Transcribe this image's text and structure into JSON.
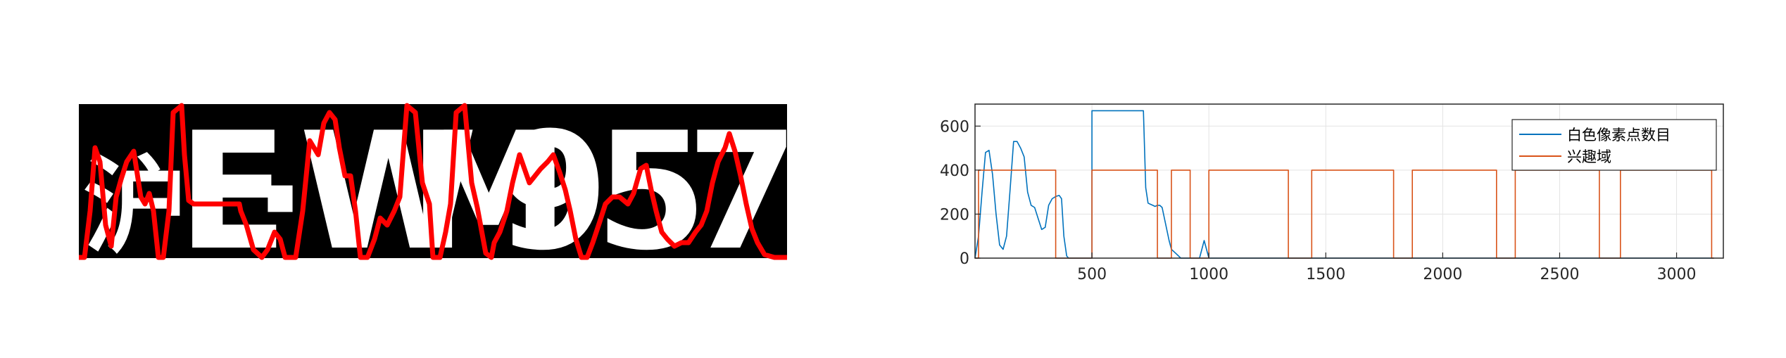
{
  "plate": {
    "characters": [
      "沪",
      "E",
      "·",
      "W",
      "M",
      "9",
      "5",
      "7"
    ],
    "colors": {
      "background": "#000000",
      "text": "#ffffff",
      "overlay": "#ff0000"
    },
    "overlay_profile_note": "red column-projection curve drawn over the binarized plate"
  },
  "chart_data": {
    "type": "line",
    "xlim": [
      0,
      3200
    ],
    "ylim": [
      0,
      700
    ],
    "xticks": [
      500,
      1000,
      1500,
      2000,
      2500,
      3000
    ],
    "yticks": [
      0,
      200,
      400,
      600
    ],
    "grid": true,
    "legend_position": "top-right",
    "series": [
      {
        "name": "白色像素点数目",
        "color": "#0072BD",
        "x": [
          0,
          15,
          30,
          45,
          60,
          75,
          90,
          105,
          120,
          135,
          150,
          165,
          180,
          195,
          210,
          225,
          240,
          255,
          270,
          285,
          300,
          315,
          330,
          345,
          360,
          370,
          380,
          392,
          400,
          402,
          420,
          440,
          460,
          480,
          500,
          500,
          520,
          560,
          600,
          640,
          680,
          720,
          730,
          740,
          750,
          760,
          770,
          780,
          790,
          800,
          830,
          840,
          860,
          880,
          900,
          920,
          940,
          960,
          980,
          1000,
          1020,
          1040,
          1060,
          1070,
          1080,
          1090,
          1100,
          1110,
          1120,
          1130,
          1140,
          1150,
          1160,
          1170,
          1180,
          1190,
          1200,
          1210,
          1220,
          1230,
          1240,
          1250,
          1260,
          1270,
          1280,
          1290,
          1300,
          1310,
          1320,
          1330,
          1335,
          1340,
          1350,
          1360,
          1380,
          1400,
          1420,
          1440,
          1450,
          1460,
          1470,
          1480,
          1490,
          1500,
          1510,
          1520,
          1540,
          1560,
          1580,
          1600,
          1620,
          1640,
          1660,
          1680,
          1690,
          1700,
          1710,
          1720,
          1730,
          1740,
          1760,
          1780,
          1790,
          1800,
          1820,
          1840,
          1860,
          1870,
          1880,
          1890,
          1900,
          1920,
          1940,
          1960,
          1980,
          1990,
          2000,
          2020,
          2040,
          2060,
          2080,
          2100,
          2120,
          2140,
          2160,
          2180,
          2200,
          2220,
          2230,
          2240,
          2260,
          2280,
          2300,
          2320,
          2340,
          2360,
          2380,
          2400,
          2420,
          2440,
          2460,
          2480,
          2500,
          2520,
          2540,
          2560,
          2580,
          2600,
          2620,
          2640,
          2660,
          2670,
          2680,
          2700,
          2720,
          2740,
          2760,
          2780,
          2800,
          2820,
          2840,
          2860,
          2880,
          2900,
          2920,
          2940,
          2960,
          2980,
          3000,
          3020,
          3040,
          3060,
          3080,
          3100,
          3120,
          3140,
          3150,
          3160
        ],
        "y": [
          0,
          100,
          300,
          480,
          490,
          380,
          200,
          60,
          40,
          100,
          310,
          530,
          530,
          500,
          460,
          300,
          240,
          230,
          180,
          130,
          140,
          240,
          270,
          280,
          285,
          270,
          100,
          10,
          0,
          0,
          0,
          0,
          0,
          0,
          0,
          670,
          670,
          670,
          670,
          670,
          670,
          670,
          320,
          250,
          245,
          240,
          235,
          240,
          240,
          230,
          80,
          40,
          20,
          0,
          0,
          0,
          0,
          0,
          80,
          0,
          0,
          0,
          0,
          0,
          0,
          0,
          0,
          0,
          0,
          0,
          0,
          0,
          0,
          0,
          0,
          0,
          0,
          0,
          0,
          0,
          0,
          0,
          0,
          0,
          0,
          0,
          0,
          0,
          0,
          0,
          0,
          0,
          0,
          0,
          0,
          0,
          0,
          0,
          0,
          0,
          0,
          0,
          0,
          0,
          0,
          0,
          0,
          0,
          0,
          0,
          0,
          0,
          0,
          0,
          0,
          0,
          0,
          0,
          0,
          0,
          0,
          0,
          0,
          0,
          0,
          0,
          0,
          0,
          0,
          0,
          0,
          0,
          0,
          0,
          0,
          0,
          0,
          0,
          0,
          0,
          0,
          0,
          0,
          0,
          0,
          0,
          0,
          0,
          0,
          0,
          0,
          0,
          0,
          0,
          0,
          0,
          0,
          0,
          0,
          0,
          0,
          0,
          0,
          0,
          0,
          0,
          0,
          0,
          0,
          0,
          0,
          0,
          0,
          0,
          0,
          0,
          0,
          0,
          0,
          0,
          0,
          0,
          0,
          0,
          0,
          0,
          0,
          0,
          0,
          0,
          0,
          0,
          0,
          0,
          0,
          0,
          0,
          0
        ]
      },
      {
        "name": "兴趣域",
        "color": "#D95319",
        "x": [
          0,
          15,
          15,
          345,
          345,
          500,
          500,
          780,
          780,
          840,
          840,
          920,
          920,
          1000,
          1000,
          1340,
          1340,
          1440,
          1440,
          1790,
          1790,
          1870,
          1870,
          2230,
          2230,
          2310,
          2310,
          2670,
          2670,
          2760,
          2760,
          3150,
          3150,
          3160
        ],
        "y": [
          0,
          0,
          400,
          400,
          0,
          0,
          400,
          400,
          0,
          0,
          400,
          400,
          0,
          0,
          400,
          400,
          0,
          0,
          400,
          400,
          0,
          0,
          400,
          400,
          0,
          0,
          400,
          400,
          0,
          0,
          400,
          400,
          0,
          0
        ]
      }
    ]
  }
}
